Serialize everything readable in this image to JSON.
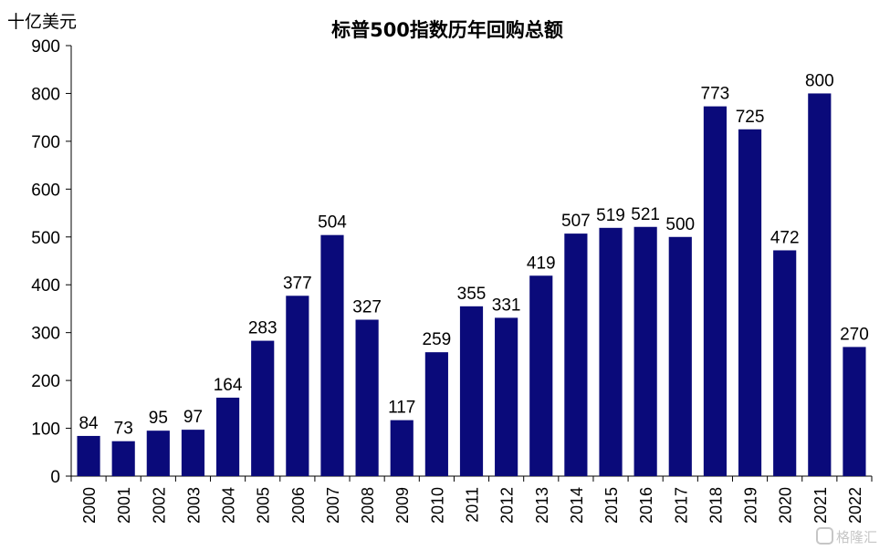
{
  "chart_data": {
    "type": "bar",
    "title": "标普500指数历年回购总额",
    "ylabel": "十亿美元",
    "xlabel": "",
    "ylim": [
      0,
      900
    ],
    "yticks": [
      0,
      100,
      200,
      300,
      400,
      500,
      600,
      700,
      800,
      900
    ],
    "grid": false,
    "legend": "none",
    "bar_color": "#0A0A7A",
    "categories": [
      "2000",
      "2001",
      "2002",
      "2003",
      "2004",
      "2005",
      "2006",
      "2007",
      "2008",
      "2009",
      "2010",
      "2011",
      "2012",
      "2013",
      "2014",
      "2015",
      "2016",
      "2017",
      "2018",
      "2019",
      "2020",
      "2021",
      "2022"
    ],
    "values": [
      84,
      73,
      95,
      97,
      164,
      283,
      377,
      504,
      327,
      117,
      259,
      355,
      331,
      419,
      507,
      519,
      521,
      500,
      773,
      725,
      472,
      800,
      270
    ],
    "data_labels": [
      "84",
      "73",
      "95",
      "97",
      "164",
      "283",
      "377",
      "504",
      "327",
      "117",
      "259",
      "355",
      "331",
      "419",
      "507",
      "519",
      "521",
      "500",
      "773",
      "725",
      "472",
      "800",
      "270"
    ]
  },
  "watermark": {
    "text": "格隆汇",
    "icon": "g-logo-icon"
  }
}
